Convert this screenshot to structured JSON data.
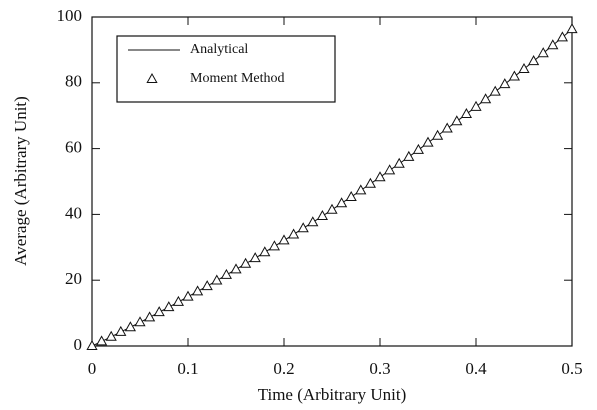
{
  "chart_data": {
    "type": "line",
    "xlabel": "Time (Arbitrary Unit)",
    "ylabel": "Average (Arbitrary Unit)",
    "x": [
      0,
      0.01,
      0.02,
      0.03,
      0.04,
      0.05,
      0.06,
      0.07,
      0.08,
      0.09,
      0.1,
      0.11,
      0.12,
      0.13,
      0.14,
      0.15,
      0.16,
      0.17,
      0.18,
      0.19,
      0.2,
      0.21,
      0.22,
      0.23,
      0.24,
      0.25,
      0.26,
      0.27,
      0.28,
      0.29,
      0.3,
      0.31,
      0.32,
      0.33,
      0.34,
      0.35,
      0.36,
      0.37,
      0.38,
      0.39,
      0.4,
      0.41,
      0.42,
      0.43,
      0.44,
      0.45,
      0.46,
      0.47,
      0.48,
      0.49,
      0.5
    ],
    "series": [
      {
        "name": "Analytical",
        "color": "#111111",
        "marker": "none",
        "values": [
          0,
          1.4,
          2.8,
          4.3,
          5.7,
          7.2,
          8.7,
          10.3,
          11.8,
          13.4,
          15.0,
          16.6,
          18.2,
          19.9,
          21.6,
          23.3,
          25.0,
          26.7,
          28.5,
          30.3,
          32.1,
          33.9,
          35.8,
          37.6,
          39.5,
          41.4,
          43.4,
          45.3,
          47.3,
          49.3,
          51.3,
          53.4,
          55.4,
          57.5,
          59.6,
          61.8,
          63.9,
          66.1,
          68.3,
          70.5,
          72.7,
          75.0,
          77.3,
          79.6,
          81.9,
          84.2,
          86.6,
          89.0,
          91.4,
          93.8,
          96.3
        ]
      },
      {
        "name": "Moment Method",
        "color": "#111111",
        "marker": "triangle",
        "values": [
          0,
          1.4,
          2.8,
          4.3,
          5.7,
          7.2,
          8.7,
          10.3,
          11.8,
          13.4,
          15.0,
          16.6,
          18.2,
          19.9,
          21.6,
          23.3,
          25.0,
          26.7,
          28.5,
          30.3,
          32.1,
          33.9,
          35.8,
          37.6,
          39.5,
          41.4,
          43.4,
          45.3,
          47.3,
          49.3,
          51.3,
          53.4,
          55.4,
          57.5,
          59.6,
          61.8,
          63.9,
          66.1,
          68.3,
          70.5,
          72.7,
          75.0,
          77.3,
          79.6,
          81.9,
          84.2,
          86.6,
          89.0,
          91.4,
          93.8,
          96.3
        ]
      }
    ],
    "xlim": [
      0,
      0.5
    ],
    "ylim": [
      0,
      100
    ],
    "xticks": [
      0,
      0.1,
      0.2,
      0.3,
      0.4,
      0.5
    ],
    "yticks": [
      0,
      20,
      40,
      60,
      80,
      100
    ],
    "legend": "upper left",
    "grid": false
  }
}
